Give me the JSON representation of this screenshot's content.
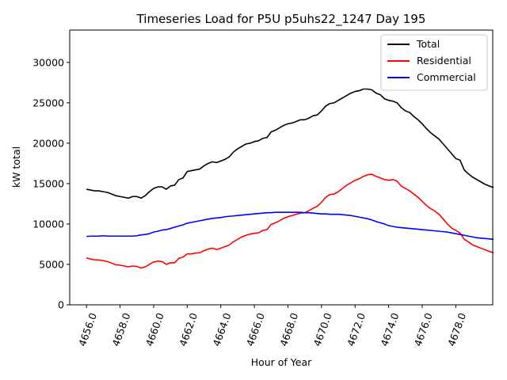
{
  "chart_data": {
    "type": "line",
    "title": "Timeseries Load for P5U p5uhs22_1247  Day 195",
    "xlabel": "Hour of Year",
    "ylabel": "kW total",
    "xlim": [
      4655.0,
      4680.2
    ],
    "ylim": [
      0,
      34000
    ],
    "x_ticks": [
      4656,
      4658,
      4660,
      4662,
      4664,
      4666,
      4668,
      4670,
      4672,
      4674,
      4676,
      4678
    ],
    "x_tick_labels": [
      "4656.0",
      "4658.0",
      "4660.0",
      "4662.0",
      "4664.0",
      "4666.0",
      "4668.0",
      "4670.0",
      "4672.0",
      "4674.0",
      "4676.0",
      "4678.0"
    ],
    "y_ticks": [
      0,
      5000,
      10000,
      15000,
      20000,
      25000,
      30000
    ],
    "y_tick_labels": [
      "0",
      "5000",
      "10000",
      "15000",
      "20000",
      "25000",
      "30000"
    ],
    "legend_position": "top-right",
    "x_start": 4656.0,
    "x_step": 0.25,
    "series": [
      {
        "name": "Total",
        "color": "#000000",
        "values": [
          14300,
          14200,
          14100,
          14100,
          14000,
          13900,
          13700,
          13500,
          13400,
          13300,
          13200,
          13400,
          13400,
          13200,
          13500,
          14000,
          14400,
          14600,
          14600,
          14300,
          14700,
          14800,
          15500,
          15700,
          16500,
          16600,
          16700,
          16800,
          17200,
          17500,
          17700,
          17600,
          17800,
          18000,
          18300,
          18900,
          19300,
          19600,
          19900,
          20000,
          20200,
          20300,
          20600,
          20700,
          21400,
          21600,
          21900,
          22200,
          22400,
          22500,
          22700,
          22900,
          22900,
          23100,
          23400,
          23500,
          24000,
          24600,
          24900,
          25000,
          25300,
          25600,
          25900,
          26200,
          26400,
          26500,
          26700,
          26700,
          26600,
          26200,
          26000,
          25500,
          25300,
          25200,
          25000,
          24400,
          24000,
          23800,
          23300,
          22900,
          22400,
          21800,
          21300,
          20900,
          20500,
          19900,
          19300,
          18700,
          18100,
          17900,
          16700,
          16200,
          15800,
          15500,
          15200,
          14900,
          14700,
          14500
        ]
      },
      {
        "name": "Residential",
        "color": "#ff0000",
        "values": [
          5800,
          5650,
          5550,
          5550,
          5450,
          5350,
          5150,
          4950,
          4900,
          4800,
          4700,
          4800,
          4750,
          4550,
          4700,
          5000,
          5300,
          5400,
          5350,
          5000,
          5200,
          5200,
          5750,
          5900,
          6300,
          6300,
          6400,
          6450,
          6700,
          6900,
          7000,
          6850,
          7000,
          7200,
          7400,
          7800,
          8100,
          8400,
          8600,
          8750,
          8850,
          8900,
          9200,
          9300,
          9950,
          10150,
          10400,
          10700,
          10900,
          11050,
          11200,
          11350,
          11400,
          11650,
          11950,
          12200,
          12700,
          13300,
          13650,
          13700,
          14000,
          14400,
          14800,
          15100,
          15400,
          15600,
          15900,
          16100,
          16150,
          15900,
          15700,
          15500,
          15400,
          15500,
          15300,
          14700,
          14400,
          14100,
          13700,
          13300,
          12800,
          12300,
          11900,
          11600,
          11200,
          10600,
          10000,
          9500,
          9200,
          8900,
          8100,
          7800,
          7400,
          7200,
          7000,
          6800,
          6600,
          6450
        ]
      },
      {
        "name": "Commercial",
        "color": "#0000ff",
        "values": [
          8450,
          8500,
          8500,
          8500,
          8550,
          8500,
          8500,
          8500,
          8500,
          8500,
          8500,
          8500,
          8550,
          8650,
          8700,
          8800,
          9000,
          9100,
          9250,
          9300,
          9450,
          9600,
          9750,
          9900,
          10100,
          10200,
          10300,
          10400,
          10500,
          10600,
          10700,
          10750,
          10800,
          10900,
          10950,
          11000,
          11050,
          11100,
          11150,
          11200,
          11250,
          11300,
          11350,
          11400,
          11400,
          11450,
          11450,
          11450,
          11450,
          11450,
          11450,
          11450,
          11400,
          11400,
          11350,
          11300,
          11250,
          11250,
          11200,
          11200,
          11200,
          11150,
          11100,
          11050,
          10950,
          10850,
          10750,
          10650,
          10500,
          10300,
          10150,
          10000,
          9800,
          9700,
          9600,
          9550,
          9500,
          9450,
          9400,
          9350,
          9300,
          9250,
          9200,
          9150,
          9100,
          9050,
          9000,
          8900,
          8800,
          8700,
          8600,
          8500,
          8400,
          8300,
          8250,
          8200,
          8150,
          8100
        ]
      }
    ]
  }
}
